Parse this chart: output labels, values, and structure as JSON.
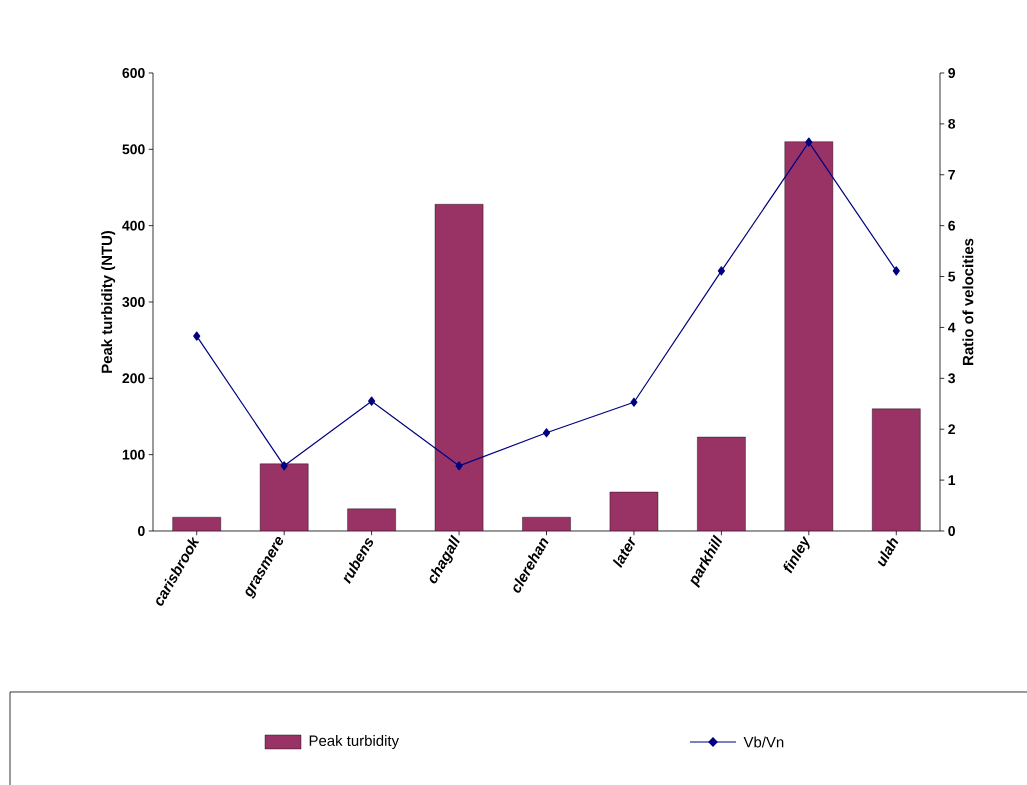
{
  "chart_data": {
    "type": "bar",
    "categories": [
      "carisbrook",
      "grasmere",
      "rubens",
      "chagall",
      "clerehan",
      "later",
      "parkhill",
      "finley",
      "ulah"
    ],
    "series": [
      {
        "name": "Peak turbidity",
        "color": "#993366",
        "values": [
          18,
          88,
          29,
          428,
          18,
          51,
          123,
          510,
          160
        ]
      },
      {
        "name": "Vb/Vn",
        "type": "line",
        "axis": "y2",
        "color": "#000080",
        "values": [
          3.83,
          1.28,
          2.55,
          1.28,
          1.93,
          2.53,
          5.11,
          7.64,
          5.11
        ]
      }
    ],
    "ylabel": "Peak turbidity (NTU)",
    "y2label": "Ratio of velocities",
    "ylim": [
      0,
      600
    ],
    "yticks": [
      0,
      100,
      200,
      300,
      400,
      500,
      600
    ],
    "y2lim": [
      0,
      9
    ],
    "y2ticks": [
      0,
      1,
      2,
      3,
      4,
      5,
      6,
      7,
      8,
      9
    ],
    "marker": "diamond",
    "legend": "bottom",
    "grid": false
  }
}
